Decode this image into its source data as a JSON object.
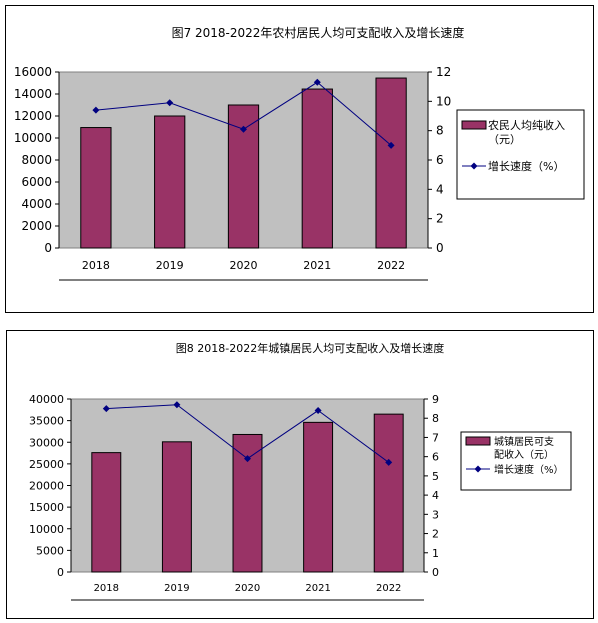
{
  "chart_data": [
    {
      "type": "bar",
      "title": "图7 2018-2022年农村居民人均可支配收入及增长速度",
      "categories": [
        "2018",
        "2019",
        "2020",
        "2021",
        "2022"
      ],
      "series": [
        {
          "name": "农民人均纯收入（元）",
          "type": "bar",
          "axis": "left",
          "values": [
            10950,
            12000,
            13000,
            14450,
            15450
          ]
        },
        {
          "name": "增长速度（%）",
          "type": "line",
          "axis": "right",
          "values": [
            9.4,
            9.9,
            8.1,
            11.3,
            7.0
          ]
        }
      ],
      "ylim": [
        0,
        16000
      ],
      "y_ticks": [
        "0",
        "2000",
        "4000",
        "6000",
        "8000",
        "10000",
        "12000",
        "14000",
        "16000"
      ],
      "y2lim": [
        0,
        12
      ],
      "y2_ticks": [
        "0",
        "2",
        "4",
        "6",
        "8",
        "10",
        "12"
      ],
      "grid": false,
      "legend_position": "right",
      "colors": {
        "bar": "#993366",
        "line": "#000080",
        "plot_bg": "#c0c0c0"
      }
    },
    {
      "type": "bar",
      "title": "图8 2018-2022年城镇居民人均可支配收入及增长速度",
      "categories": [
        "2018",
        "2019",
        "2020",
        "2021",
        "2022"
      ],
      "series": [
        {
          "name": "城镇居民可支配收入（元）",
          "type": "bar",
          "axis": "left",
          "values": [
            27600,
            30100,
            31800,
            34600,
            36500
          ]
        },
        {
          "name": "增长速度（%）",
          "type": "line",
          "axis": "right",
          "values": [
            8.5,
            8.7,
            5.9,
            8.4,
            5.7
          ]
        }
      ],
      "ylim": [
        0,
        40000
      ],
      "y_ticks": [
        "0",
        "5000",
        "10000",
        "15000",
        "20000",
        "25000",
        "30000",
        "35000",
        "40000"
      ],
      "y2lim": [
        0,
        9
      ],
      "y2_ticks": [
        "0",
        "1",
        "2",
        "3",
        "4",
        "5",
        "6",
        "7",
        "8",
        "9"
      ],
      "grid": false,
      "legend_position": "right",
      "colors": {
        "bar": "#993366",
        "line": "#000080",
        "plot_bg": "#c0c0c0"
      }
    }
  ],
  "legend_text": {
    "chart1_bar_lines": [
      "农民人均纯收入",
      "（元）"
    ],
    "chart2_bar_lines": [
      "城镇居民可支",
      "配收入（元）"
    ],
    "line_label": "增长速度（%）"
  }
}
